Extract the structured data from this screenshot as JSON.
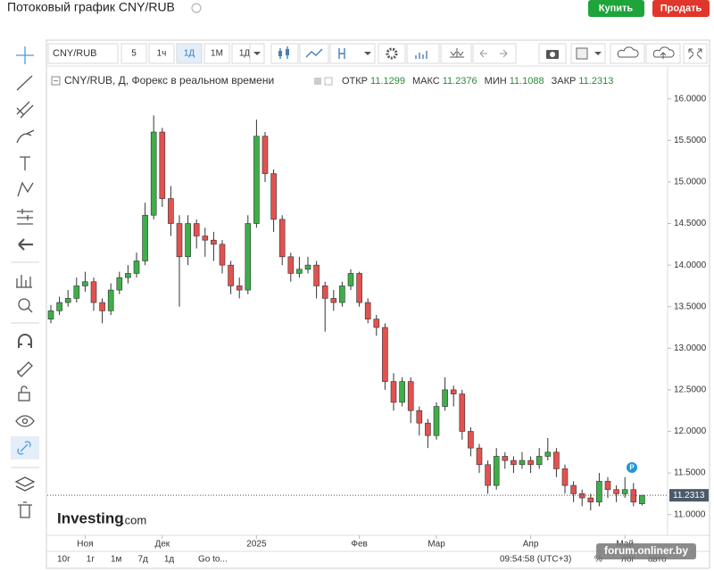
{
  "header": {
    "title": "Потоковый график CNY/RUB",
    "buy": "Купить",
    "sell": "Продать"
  },
  "toolbar": {
    "symbol": "CNY/RUB",
    "intervals": [
      "5",
      "1ч",
      "1Д",
      "1М",
      "1Д"
    ]
  },
  "bottom_bar": {
    "ranges": [
      "10г",
      "1г",
      "1м",
      "7д",
      "1д"
    ],
    "goto": "Go to...",
    "time": "09:54:58 (UTC+3)",
    "options": [
      "%",
      "лог",
      "авто"
    ]
  },
  "watermark": "forum.onliner.by",
  "chart_data": {
    "type": "candlestick",
    "title": "CNY/RUB, Д, Форекс в реальном времени",
    "ohlc_labels": [
      "ОТКР",
      "МАКС",
      "МИН",
      "ЗАКР"
    ],
    "logo": "Investing",
    "logo_suffix": ".com",
    "marker": "P",
    "open": [
      13.35,
      13.45,
      13.55,
      13.6,
      13.75,
      13.8,
      13.55,
      13.45,
      13.7,
      13.85,
      13.9,
      14.05,
      14.6,
      15.6,
      14.8,
      14.5,
      14.1,
      14.5,
      14.35,
      14.3,
      14.25,
      14.0,
      13.75,
      13.7,
      14.5,
      15.55,
      15.1,
      14.55,
      14.1,
      13.9,
      13.95,
      14.0,
      13.75,
      13.6,
      13.55,
      13.75,
      13.9,
      13.55,
      13.35,
      13.25,
      12.6,
      12.35,
      12.6,
      12.25,
      12.1,
      11.95,
      12.3,
      12.5,
      12.45,
      12.0,
      11.8,
      11.6,
      11.35,
      11.7,
      11.65,
      11.6,
      11.65,
      11.6,
      11.7,
      11.75,
      11.55,
      11.35,
      11.25,
      11.2,
      11.15,
      11.4,
      11.3,
      11.25,
      11.3,
      11.1299
    ],
    "high": [
      13.52,
      13.62,
      13.7,
      13.85,
      13.92,
      13.85,
      13.6,
      13.78,
      13.92,
      14.0,
      14.15,
      14.75,
      15.8,
      15.65,
      14.95,
      14.6,
      14.6,
      14.55,
      14.45,
      14.4,
      14.3,
      14.05,
      13.85,
      14.6,
      15.75,
      15.6,
      15.15,
      14.6,
      14.15,
      14.1,
      14.1,
      14.05,
      13.8,
      13.7,
      13.8,
      13.95,
      13.92,
      13.6,
      13.4,
      13.3,
      12.7,
      12.65,
      12.65,
      12.3,
      12.15,
      12.35,
      12.65,
      12.55,
      12.5,
      12.05,
      11.85,
      11.65,
      11.8,
      11.75,
      11.7,
      11.75,
      11.7,
      11.8,
      11.92,
      11.8,
      11.6,
      11.4,
      11.3,
      11.25,
      11.5,
      11.45,
      11.35,
      11.45,
      11.38,
      11.2376
    ],
    "low": [
      13.3,
      13.4,
      13.5,
      13.55,
      13.68,
      13.45,
      13.3,
      13.4,
      13.65,
      13.78,
      13.85,
      14.0,
      14.55,
      14.7,
      14.35,
      13.5,
      14.0,
      14.2,
      14.1,
      14.05,
      13.9,
      13.65,
      13.6,
      13.65,
      14.45,
      15.0,
      14.4,
      14.0,
      13.8,
      13.85,
      13.9,
      13.6,
      13.2,
      13.45,
      13.5,
      13.7,
      13.5,
      13.3,
      13.15,
      12.5,
      12.25,
      12.3,
      12.1,
      11.95,
      11.8,
      11.9,
      12.25,
      12.3,
      11.9,
      11.7,
      11.5,
      11.25,
      11.3,
      11.55,
      11.5,
      11.55,
      11.5,
      11.55,
      11.65,
      11.45,
      11.25,
      11.15,
      11.1,
      11.05,
      11.1,
      11.2,
      11.15,
      11.2,
      11.1,
      11.1088
    ],
    "close": [
      13.45,
      13.55,
      13.6,
      13.75,
      13.8,
      13.55,
      13.45,
      13.7,
      13.85,
      13.9,
      14.05,
      14.6,
      15.6,
      14.8,
      14.5,
      14.1,
      14.5,
      14.35,
      14.3,
      14.25,
      14.0,
      13.75,
      13.7,
      14.5,
      15.55,
      15.1,
      14.55,
      14.1,
      13.9,
      13.95,
      14.0,
      13.75,
      13.6,
      13.55,
      13.75,
      13.9,
      13.55,
      13.35,
      13.25,
      12.6,
      12.35,
      12.6,
      12.25,
      12.1,
      11.95,
      12.3,
      12.5,
      12.45,
      12.0,
      11.8,
      11.6,
      11.35,
      11.7,
      11.65,
      11.6,
      11.65,
      11.6,
      11.7,
      11.75,
      11.55,
      11.35,
      11.25,
      11.2,
      11.15,
      11.4,
      11.3,
      11.25,
      11.3,
      11.15,
      11.2313
    ],
    "ylim": [
      10.75,
      16.33
    ],
    "yticks": [
      {
        "value": 11,
        "label": "11.0000"
      },
      {
        "value": 11.5,
        "label": "11.5000"
      },
      {
        "value": 12,
        "label": "12.0000"
      },
      {
        "value": 12.5,
        "label": "12.5000"
      },
      {
        "value": 13,
        "label": "13.0000"
      },
      {
        "value": 13.5,
        "label": "13.5000"
      },
      {
        "value": 14,
        "label": "14.0000"
      },
      {
        "value": 14.5,
        "label": "14.5000"
      },
      {
        "value": 15,
        "label": "15.0000"
      },
      {
        "value": 15.5,
        "label": "15.5000"
      },
      {
        "value": 16,
        "label": "16.0000"
      }
    ],
    "xticks": [
      {
        "value": 4,
        "label": "Ноя"
      },
      {
        "value": 13,
        "label": "Дек"
      },
      {
        "value": 24,
        "label": "2025"
      },
      {
        "value": 36,
        "label": "Фев"
      },
      {
        "value": 45,
        "label": "Мар"
      },
      {
        "value": 56,
        "label": "Апр"
      },
      {
        "value": 67,
        "label": "Май"
      }
    ],
    "up_color": "#3fae49",
    "down_color": "#e2524f",
    "last_price_line": true
  }
}
